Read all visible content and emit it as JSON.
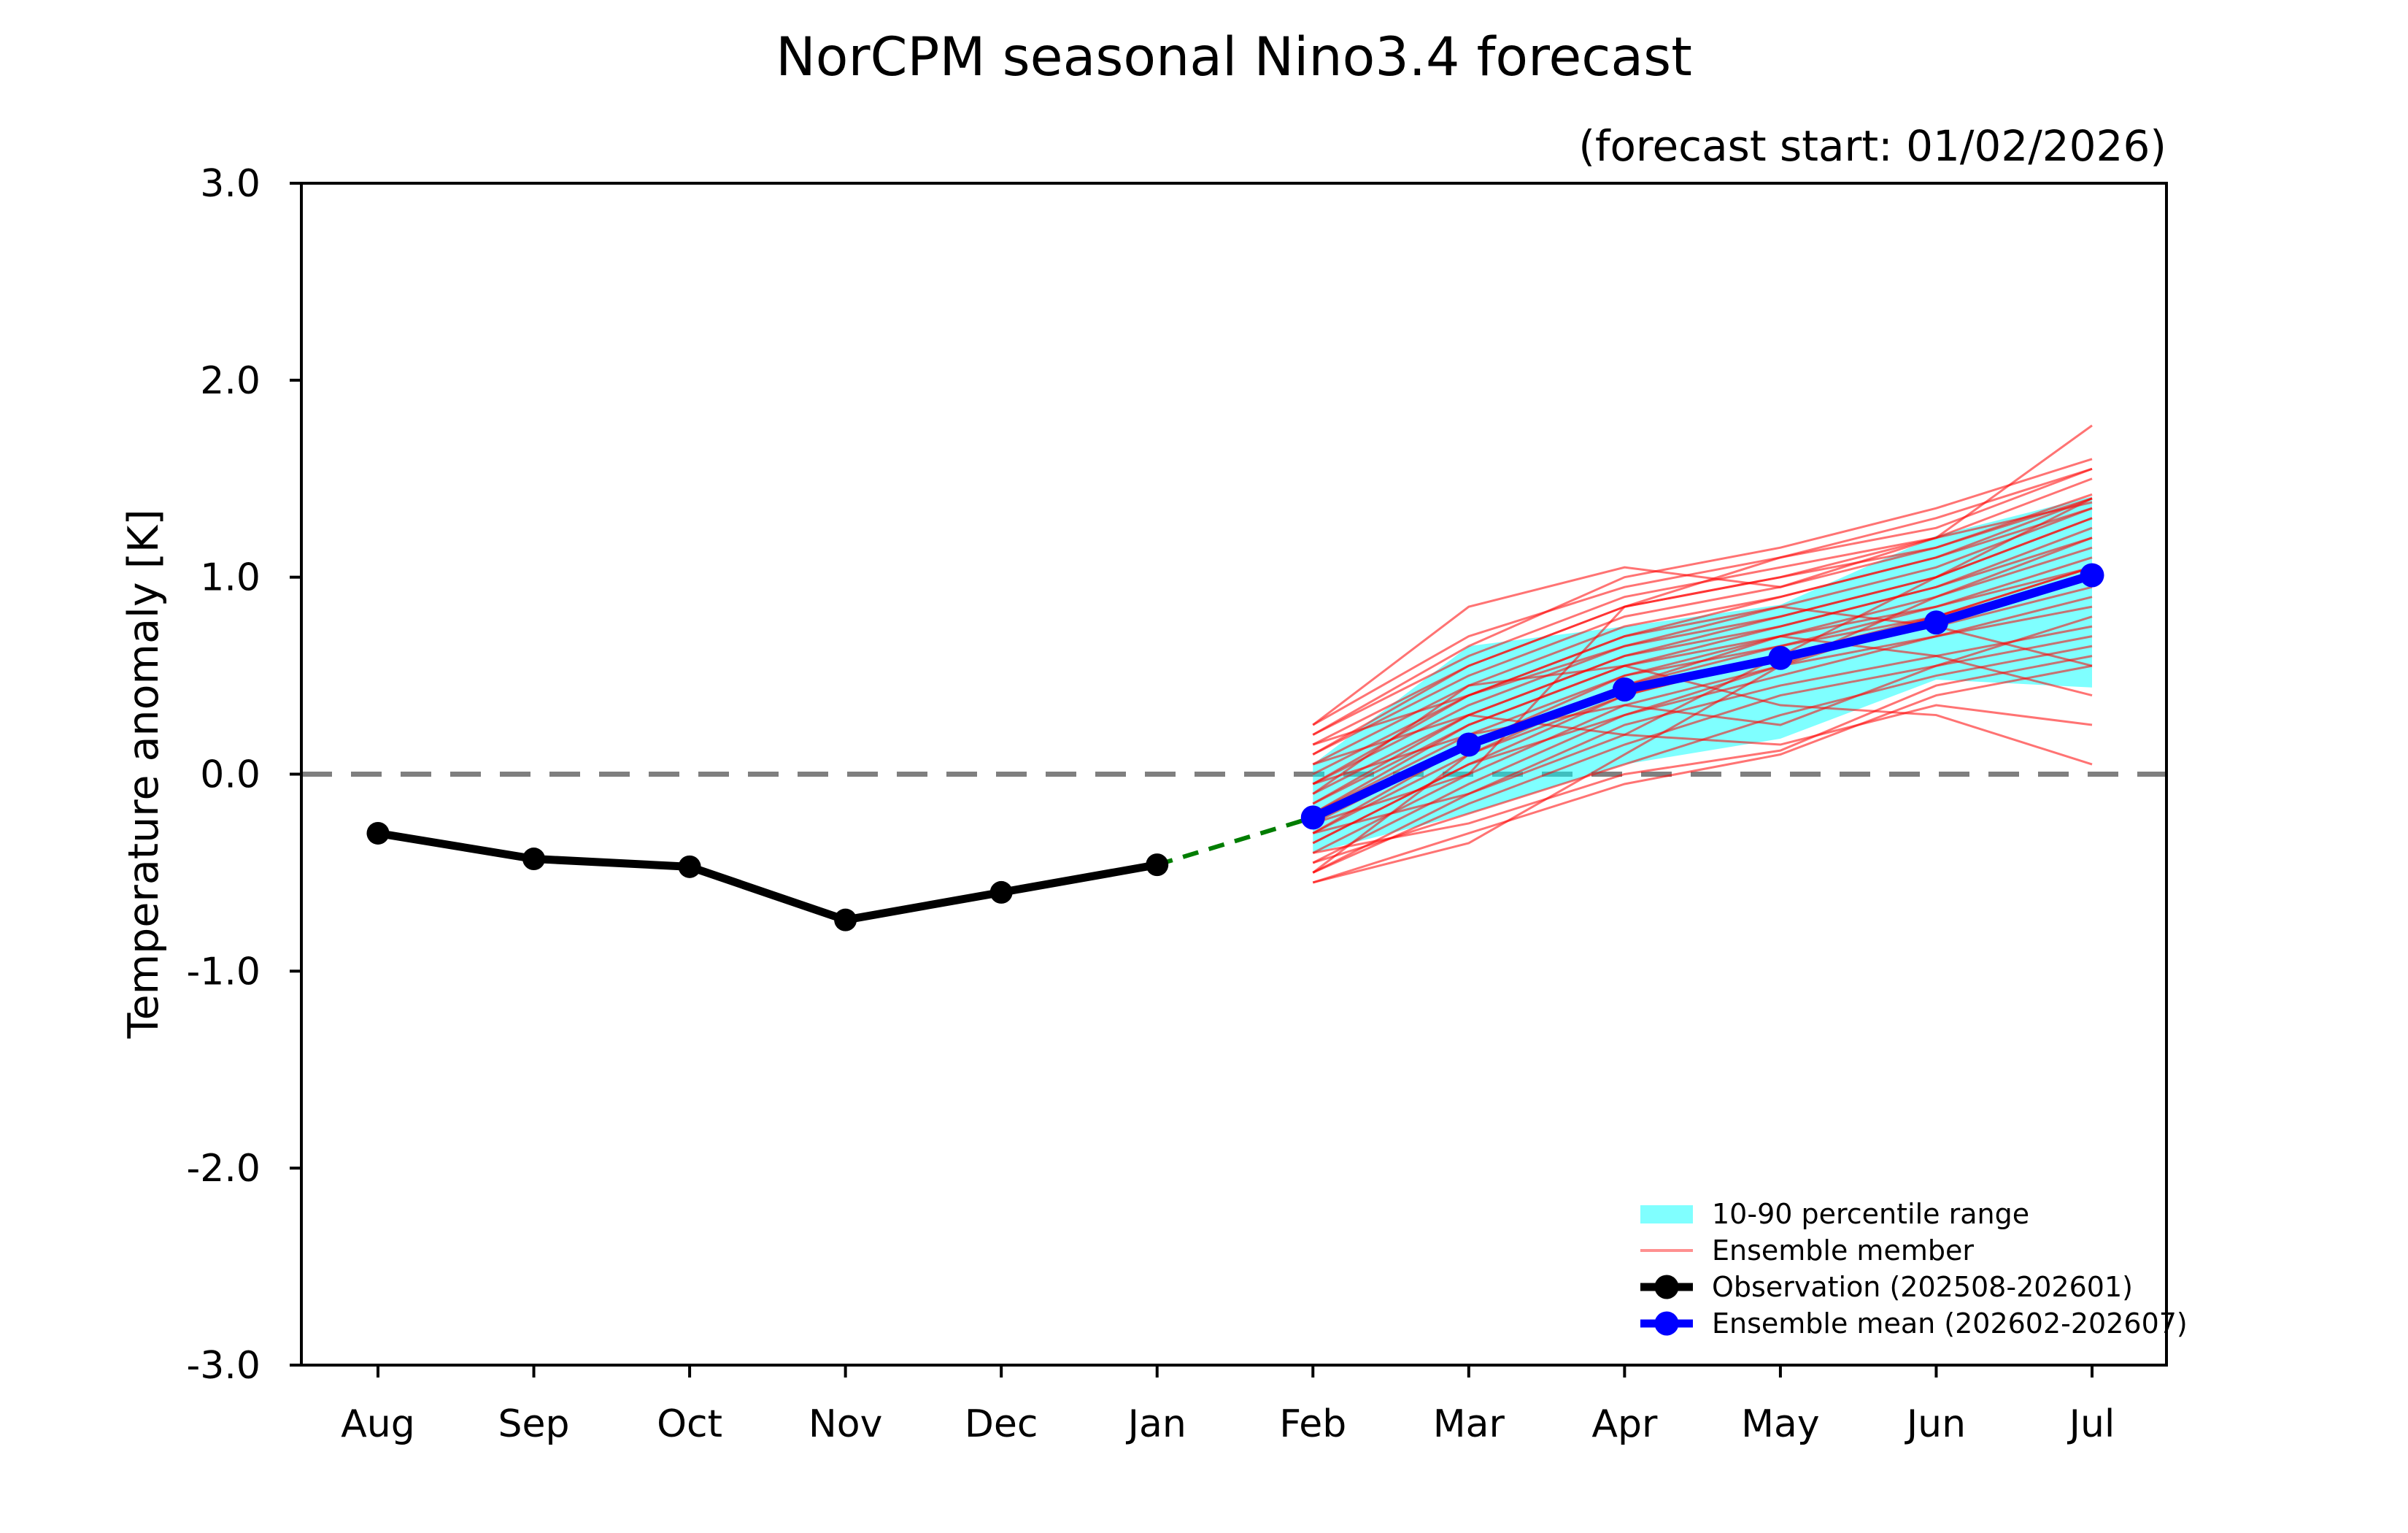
{
  "title": "NorCPM seasonal Nino3.4 forecast",
  "subtitle": "(forecast start: 01/02/2026)",
  "axes": {
    "ylabel": "Temperature anomaly [K]",
    "x_tick_labels": [
      "Aug",
      "Sep",
      "Oct",
      "Nov",
      "Dec",
      "Jan",
      "Feb",
      "Mar",
      "Apr",
      "May",
      "Jun",
      "Jul"
    ],
    "y_tick_labels": [
      "3.0",
      "2.0",
      "1.0",
      "0.0",
      "-1.0",
      "-2.0",
      "-3.0"
    ],
    "y_tick_values": [
      3.0,
      2.0,
      1.0,
      0.0,
      -1.0,
      -2.0,
      -3.0
    ],
    "ylim": [
      -3.0,
      3.0
    ]
  },
  "colors": {
    "observation": "#000000",
    "ensemble_mean": "#0000ff",
    "ensemble_member": "#ff0000",
    "percentile_band": "#00ffff",
    "zero_line": "#7f7f7f",
    "connector": "#007d00",
    "axis": "#000000"
  },
  "legend": {
    "items": [
      {
        "label": "10-90 percentile range",
        "type": "patch"
      },
      {
        "label": "Ensemble member",
        "type": "line"
      },
      {
        "label": "Observation (202508-202601)",
        "type": "line-marker"
      },
      {
        "label": "Ensemble mean (202602-202607)",
        "type": "line-marker"
      }
    ]
  },
  "chart_data": {
    "type": "line",
    "title": "NorCPM seasonal Nino3.4 forecast",
    "subtitle": "(forecast start: 01/02/2026)",
    "xlabel": "",
    "ylabel": "Temperature anomaly [K]",
    "ylim": [
      -3.0,
      3.0
    ],
    "grid": false,
    "legend_position": "lower right",
    "categories": [
      "Aug",
      "Sep",
      "Oct",
      "Nov",
      "Dec",
      "Jan",
      "Feb",
      "Mar",
      "Apr",
      "May",
      "Jun",
      "Jul"
    ],
    "zero_reference_line": 0.0,
    "observation": {
      "name": "Observation (202508-202601)",
      "months": [
        "Aug",
        "Sep",
        "Oct",
        "Nov",
        "Dec",
        "Jan"
      ],
      "values": [
        -0.3,
        -0.43,
        -0.47,
        -0.74,
        -0.6,
        -0.46
      ]
    },
    "ensemble_mean": {
      "name": "Ensemble mean (202602-202607)",
      "months": [
        "Feb",
        "Mar",
        "Apr",
        "May",
        "Jun",
        "Jul"
      ],
      "values": [
        -0.22,
        0.15,
        0.43,
        0.59,
        0.77,
        1.01
      ]
    },
    "connector": {
      "from_month": "Jan",
      "from_value": -0.46,
      "to_month": "Feb",
      "to_value": -0.22,
      "style": "green-dashed"
    },
    "percentile_band": {
      "name": "10-90 percentile range",
      "months": [
        "Feb",
        "Mar",
        "Apr",
        "May",
        "Jun",
        "Jul"
      ],
      "p10": [
        -0.4,
        -0.2,
        0.05,
        0.18,
        0.48,
        0.44
      ],
      "p90": [
        0.05,
        0.65,
        0.75,
        0.86,
        1.21,
        1.41
      ]
    },
    "ensemble_members": {
      "name": "Ensemble member",
      "months": [
        "Feb",
        "Mar",
        "Apr",
        "May",
        "Jun",
        "Jul"
      ],
      "note": "approximate member traces read from plot; range Feb [-0.55,0.25] to Jul [0.05,1.77]",
      "series": [
        [
          -0.5,
          -0.1,
          0.25,
          0.45,
          0.6,
          0.75
        ],
        [
          -0.35,
          0.05,
          0.3,
          0.55,
          0.8,
          1.05
        ],
        [
          -0.2,
          0.2,
          0.5,
          0.65,
          0.85,
          1.1
        ],
        [
          -0.05,
          0.35,
          0.65,
          0.8,
          1.0,
          1.3
        ],
        [
          0.1,
          0.5,
          0.8,
          0.95,
          1.15,
          1.42
        ],
        [
          0.25,
          0.7,
          0.95,
          1.1,
          1.25,
          1.55
        ],
        [
          -0.45,
          -0.2,
          0.05,
          0.3,
          0.5,
          0.65
        ],
        [
          -0.3,
          0.1,
          0.4,
          0.6,
          0.75,
          0.95
        ],
        [
          -0.15,
          0.25,
          0.55,
          0.7,
          0.9,
          1.15
        ],
        [
          0.0,
          0.4,
          0.7,
          0.85,
          1.05,
          1.35
        ],
        [
          0.15,
          0.55,
          0.85,
          1.0,
          1.2,
          1.5
        ],
        [
          -0.55,
          -0.3,
          -0.05,
          0.1,
          0.4,
          0.55
        ],
        [
          -0.4,
          0.0,
          0.35,
          0.55,
          0.7,
          0.85
        ],
        [
          -0.25,
          0.15,
          0.45,
          0.65,
          0.8,
          1.0
        ],
        [
          -0.1,
          0.3,
          0.6,
          0.75,
          0.95,
          1.2
        ],
        [
          0.05,
          0.45,
          0.75,
          0.9,
          1.1,
          1.4
        ],
        [
          0.2,
          0.6,
          0.9,
          1.05,
          1.2,
          1.38
        ],
        [
          -0.5,
          -0.15,
          0.15,
          0.4,
          0.55,
          0.7
        ],
        [
          -0.35,
          0.05,
          0.4,
          0.6,
          0.8,
          1.05
        ],
        [
          -0.2,
          0.25,
          0.55,
          0.75,
          0.95,
          1.25
        ],
        [
          -0.05,
          0.4,
          0.7,
          0.9,
          1.1,
          1.35
        ],
        [
          0.1,
          0.55,
          0.85,
          1.0,
          1.15,
          1.4
        ],
        [
          -0.45,
          -0.05,
          0.3,
          0.5,
          0.7,
          0.9
        ],
        [
          -0.3,
          0.15,
          0.5,
          0.7,
          0.85,
          1.05
        ],
        [
          -0.15,
          0.3,
          0.6,
          0.8,
          1.0,
          1.3
        ],
        [
          0.25,
          0.85,
          1.05,
          0.95,
          1.2,
          1.77
        ],
        [
          -0.55,
          -0.35,
          0.1,
          0.55,
          0.9,
          1.2
        ],
        [
          -0.1,
          0.45,
          0.55,
          0.35,
          0.3,
          0.05
        ],
        [
          0.05,
          0.3,
          0.2,
          0.15,
          0.35,
          0.25
        ],
        [
          -0.25,
          0.0,
          0.85,
          1.1,
          1.3,
          1.55
        ],
        [
          -0.4,
          -0.25,
          0.0,
          0.12,
          0.45,
          0.6
        ],
        [
          0.2,
          0.65,
          1.0,
          1.15,
          1.35,
          1.6
        ],
        [
          -0.5,
          0.1,
          0.45,
          0.7,
          0.6,
          0.4
        ],
        [
          -0.05,
          0.2,
          0.35,
          0.25,
          0.55,
          0.8
        ],
        [
          0.15,
          0.4,
          0.65,
          0.85,
          0.75,
          0.55
        ],
        [
          -0.3,
          -0.1,
          0.2,
          0.6,
          1.0,
          1.4
        ]
      ]
    }
  }
}
